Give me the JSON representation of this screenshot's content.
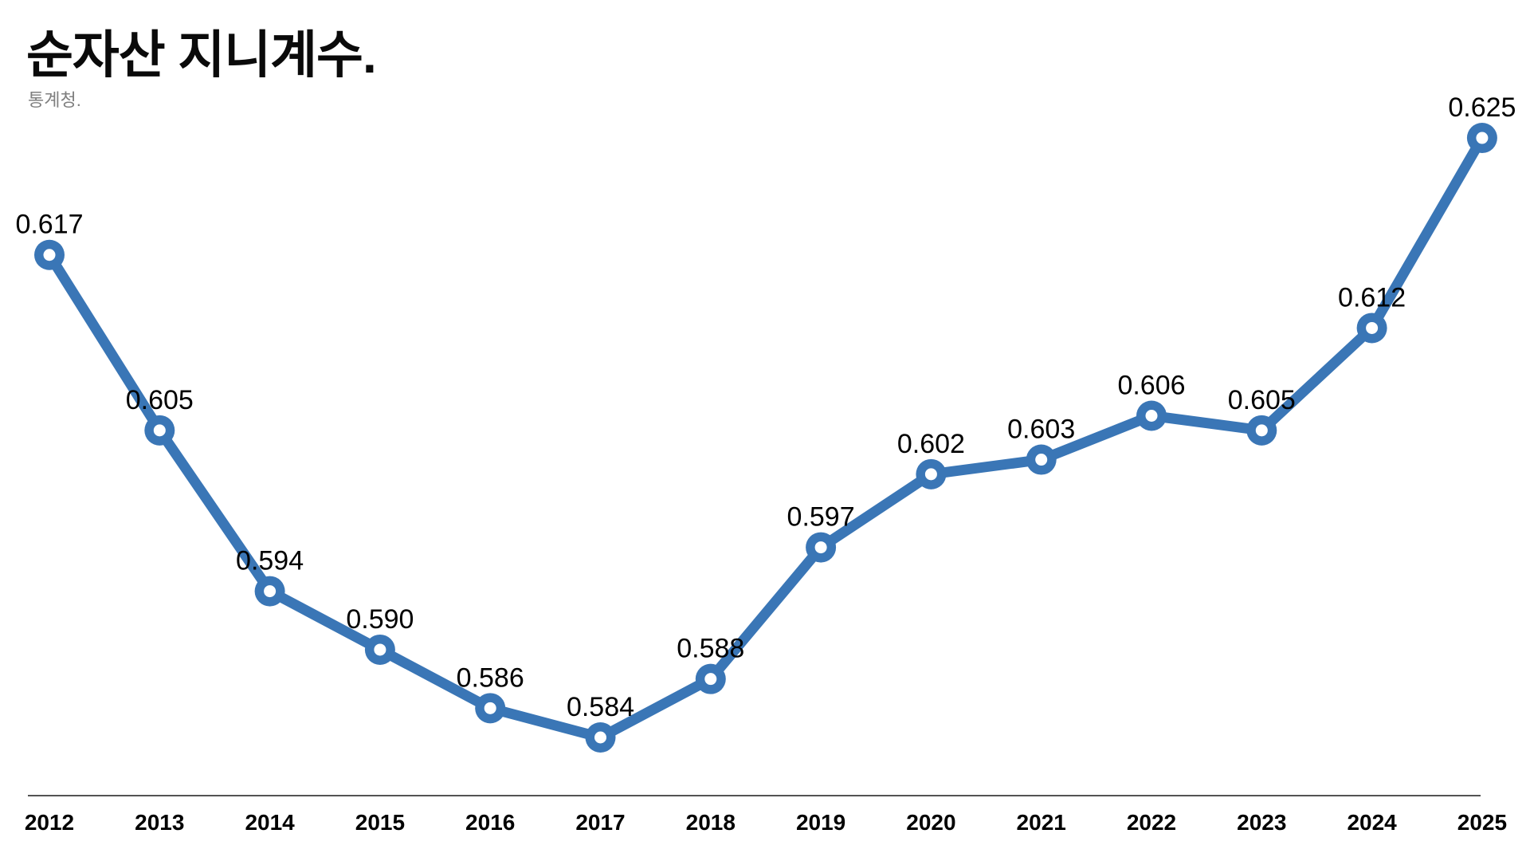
{
  "header": {
    "title": "순자산 지니계수.",
    "source": "통계청."
  },
  "chart_data": {
    "type": "line",
    "title": "순자산 지니계수.",
    "subtitle": "통계청.",
    "categories": [
      2012,
      2013,
      2014,
      2015,
      2016,
      2017,
      2018,
      2019,
      2020,
      2021,
      2022,
      2023,
      2024,
      2025
    ],
    "values": [
      0.617,
      0.605,
      0.594,
      0.59,
      0.586,
      0.584,
      0.588,
      0.597,
      0.602,
      0.603,
      0.606,
      0.605,
      0.612,
      0.625
    ],
    "data_labels": [
      "0.617",
      "0.605",
      "0.594",
      "0.590",
      "0.586",
      "0.584",
      "0.588",
      "0.597",
      "0.602",
      "0.603",
      "0.606",
      "0.605",
      "0.612",
      "0.625"
    ],
    "xlabel": "",
    "ylabel": "",
    "ylim": [
      0.58,
      0.63
    ],
    "grid": false,
    "legend_position": "none",
    "line_color": "#3a76b6",
    "marker_style": "open-circle",
    "axis_line_color": "#1a1a1a",
    "label_color": "#000000"
  }
}
